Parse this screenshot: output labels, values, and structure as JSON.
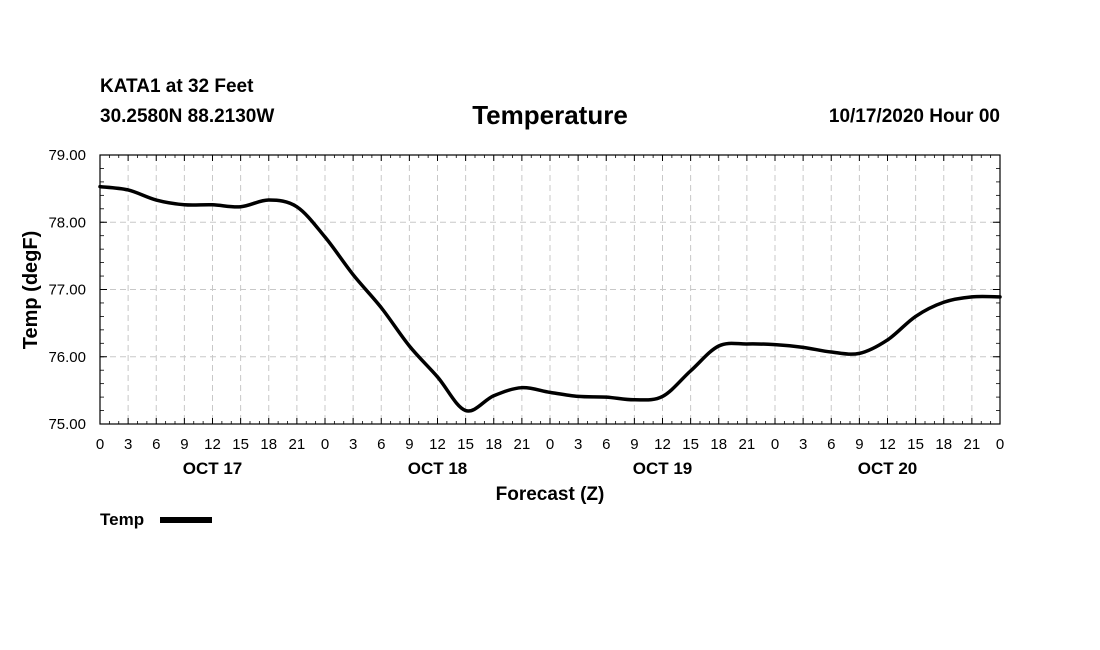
{
  "header": {
    "station": "KATA1 at 32 Feet",
    "coords": "30.2580N 88.2130W",
    "run": "10/17/2020 Hour 00"
  },
  "colors": {
    "line": "#000000",
    "grid": "#c8c8c8"
  },
  "chart_data": {
    "type": "line",
    "title": "Temperature",
    "xlabel": "Forecast (Z)",
    "ylabel": "Temp (degF)",
    "ylim": [
      75,
      79
    ],
    "xlim": [
      0,
      96
    ],
    "grid": true,
    "y_ticks": [
      {
        "value": 75,
        "label": "75.00"
      },
      {
        "value": 76,
        "label": "76.00"
      },
      {
        "value": 77,
        "label": "77.00"
      },
      {
        "value": 78,
        "label": "78.00"
      },
      {
        "value": 79,
        "label": "79.00"
      }
    ],
    "x_tick_labels": [
      "0",
      "3",
      "6",
      "9",
      "12",
      "15",
      "18",
      "21",
      "0",
      "3",
      "6",
      "9",
      "12",
      "15",
      "18",
      "21",
      "0",
      "3",
      "6",
      "9",
      "12",
      "15",
      "18",
      "21",
      "0",
      "3",
      "6",
      "9",
      "12",
      "15",
      "18",
      "21",
      "0"
    ],
    "day_labels": [
      {
        "hour": 12,
        "label": "OCT 17"
      },
      {
        "hour": 36,
        "label": "OCT 18"
      },
      {
        "hour": 60,
        "label": "OCT 19"
      },
      {
        "hour": 84,
        "label": "OCT 20"
      }
    ],
    "legend": {
      "position": "bottom-left",
      "label": "Temp"
    },
    "series": [
      {
        "name": "Temp",
        "x": [
          0,
          3,
          6,
          9,
          12,
          15,
          18,
          21,
          24,
          27,
          30,
          33,
          36,
          39,
          42,
          45,
          48,
          51,
          54,
          57,
          60,
          63,
          66,
          69,
          72,
          75,
          78,
          81,
          84,
          87,
          90,
          93,
          96
        ],
        "values": [
          78.53,
          78.48,
          78.33,
          78.26,
          78.26,
          78.23,
          78.33,
          78.23,
          77.78,
          77.22,
          76.73,
          76.16,
          75.7,
          75.2,
          75.42,
          75.54,
          75.47,
          75.41,
          75.4,
          75.36,
          75.41,
          75.79,
          76.16,
          76.19,
          76.18,
          76.14,
          76.07,
          76.05,
          76.25,
          76.6,
          76.81,
          76.89,
          76.89
        ]
      }
    ]
  }
}
